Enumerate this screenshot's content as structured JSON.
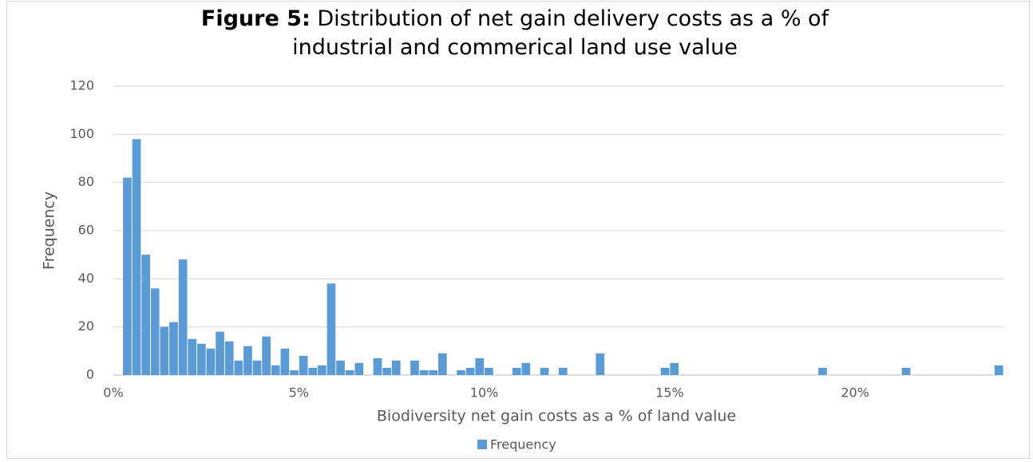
{
  "chart_data": {
    "type": "bar",
    "title_prefix": "Figure 5:",
    "title": "Distribution of net gain delivery costs as a % of industrial and commerical land use value",
    "x_label": "Biodiversity net gain costs as a % of land value",
    "y_label": "Frequency",
    "color": "#5b9bd5",
    "grid": true,
    "legend": "bottom",
    "x": [
      0.375,
      0.625,
      0.875,
      1.125,
      1.375,
      1.625,
      1.875,
      2.125,
      2.375,
      2.625,
      2.875,
      3.125,
      3.375,
      3.625,
      3.875,
      4.125,
      4.375,
      4.625,
      4.875,
      5.125,
      5.375,
      5.625,
      5.875,
      6.125,
      6.375,
      6.625,
      7.125,
      7.375,
      7.625,
      8.125,
      8.375,
      8.625,
      8.875,
      9.375,
      9.625,
      9.875,
      10.125,
      10.875,
      11.125,
      11.625,
      12.125,
      13.125,
      14.875,
      15.125,
      19.125,
      21.375,
      23.875
    ],
    "series": [
      {
        "name": "Frequency",
        "color": "#5b9bd5",
        "values": [
          82,
          98,
          50,
          36,
          20,
          22,
          48,
          15,
          13,
          11,
          18,
          14,
          6,
          12,
          6,
          16,
          4,
          11,
          2,
          8,
          3,
          4,
          38,
          6,
          2,
          5,
          7,
          3,
          6,
          6,
          2,
          2,
          9,
          2,
          3,
          7,
          3,
          3,
          5,
          3,
          3,
          9,
          3,
          5,
          3,
          3,
          4
        ]
      }
    ],
    "xlim": [
      0,
      24
    ],
    "xticks": [
      {
        "value": 0,
        "label": "0%"
      },
      {
        "value": 5,
        "label": "5%"
      },
      {
        "value": 10,
        "label": "10%"
      },
      {
        "value": 15,
        "label": "15%"
      },
      {
        "value": 20,
        "label": "20%"
      }
    ],
    "ylim": [
      0,
      120
    ],
    "yticks": [
      0,
      20,
      40,
      60,
      80,
      100,
      120
    ]
  }
}
